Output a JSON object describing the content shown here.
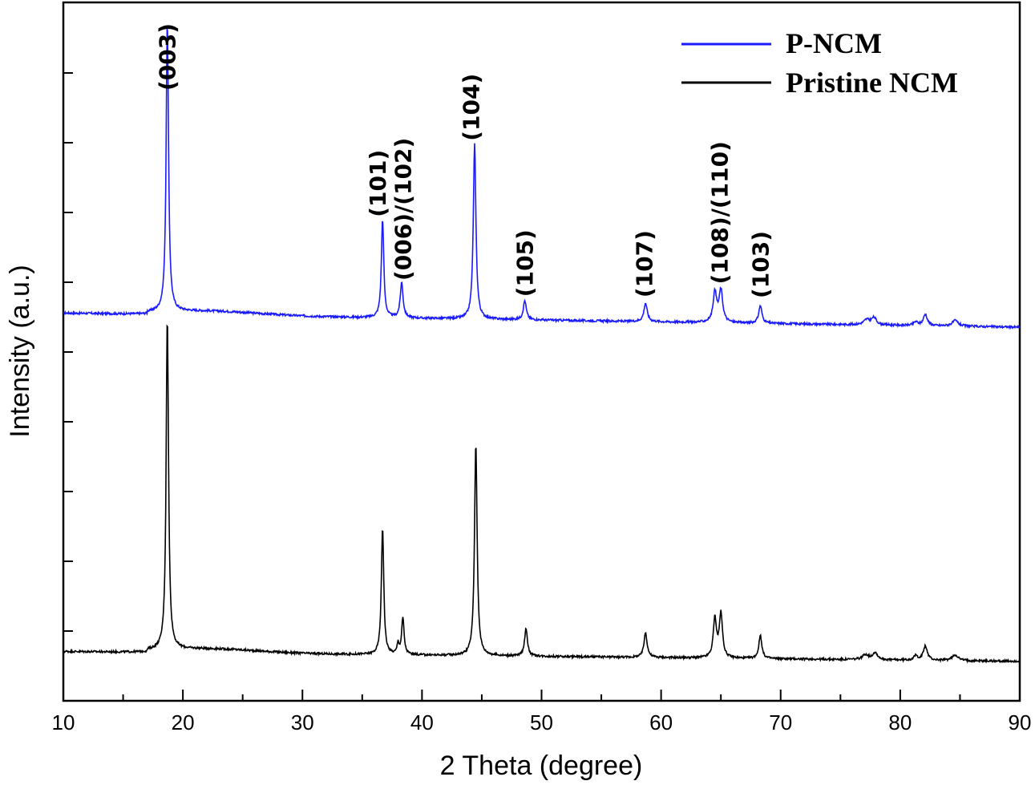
{
  "chart_data": {
    "type": "line",
    "xlabel": "2 Theta (degree)",
    "ylabel": "Intensity (a.u.)",
    "xlim": [
      10,
      90
    ],
    "x_ticks": [
      10,
      20,
      30,
      40,
      50,
      60,
      70,
      80,
      90
    ],
    "y_tick_labels_shown": false,
    "grid": false,
    "legend_position": "top-right",
    "series": [
      {
        "name": "P-NCM",
        "color": "#1a1aff",
        "baseline_start": 0.2,
        "baseline_end": 0.0,
        "peaks": [
          {
            "x": 18.7,
            "h": 4.1,
            "w": 0.12
          },
          {
            "x": 36.7,
            "h": 1.4,
            "w": 0.12
          },
          {
            "x": 38.3,
            "h": 0.5,
            "w": 0.14
          },
          {
            "x": 44.4,
            "h": 2.48,
            "w": 0.13
          },
          {
            "x": 48.6,
            "h": 0.27,
            "w": 0.15
          },
          {
            "x": 58.7,
            "h": 0.26,
            "w": 0.17
          },
          {
            "x": 64.5,
            "h": 0.42,
            "w": 0.18
          },
          {
            "x": 65.0,
            "h": 0.45,
            "w": 0.18
          },
          {
            "x": 68.3,
            "h": 0.25,
            "w": 0.16
          },
          {
            "x": 77.2,
            "h": 0.07,
            "w": 0.3
          },
          {
            "x": 77.8,
            "h": 0.1,
            "w": 0.25
          },
          {
            "x": 81.3,
            "h": 0.05,
            "w": 0.2
          },
          {
            "x": 82.1,
            "h": 0.16,
            "w": 0.2
          },
          {
            "x": 84.6,
            "h": 0.08,
            "w": 0.3
          }
        ]
      },
      {
        "name": "Pristine NCM",
        "color": "#000000",
        "baseline_start": 0.12,
        "baseline_end": -0.02,
        "peaks": [
          {
            "x": 18.7,
            "h": 4.7,
            "w": 0.12
          },
          {
            "x": 36.7,
            "h": 1.8,
            "w": 0.12
          },
          {
            "x": 38.0,
            "h": 0.15,
            "w": 0.1
          },
          {
            "x": 38.4,
            "h": 0.52,
            "w": 0.12
          },
          {
            "x": 44.5,
            "h": 3.0,
            "w": 0.13
          },
          {
            "x": 48.7,
            "h": 0.4,
            "w": 0.14
          },
          {
            "x": 58.7,
            "h": 0.35,
            "w": 0.16
          },
          {
            "x": 64.5,
            "h": 0.55,
            "w": 0.16
          },
          {
            "x": 65.0,
            "h": 0.62,
            "w": 0.16
          },
          {
            "x": 68.3,
            "h": 0.33,
            "w": 0.15
          },
          {
            "x": 77.1,
            "h": 0.07,
            "w": 0.3
          },
          {
            "x": 77.9,
            "h": 0.1,
            "w": 0.25
          },
          {
            "x": 81.3,
            "h": 0.06,
            "w": 0.2
          },
          {
            "x": 82.1,
            "h": 0.2,
            "w": 0.2
          },
          {
            "x": 84.6,
            "h": 0.08,
            "w": 0.3
          }
        ]
      }
    ],
    "annotations": [
      {
        "text": "(003)",
        "x": 18.7
      },
      {
        "text": "(101)",
        "x": 36.3
      },
      {
        "text": "(006)/(102)",
        "x": 38.4
      },
      {
        "text": "(104)",
        "x": 44.1
      },
      {
        "text": "(105)",
        "x": 48.6
      },
      {
        "text": "(107)",
        "x": 58.6
      },
      {
        "text": "(108)/(110)",
        "x": 64.9
      },
      {
        "text": "(103)",
        "x": 68.3
      }
    ],
    "legend": [
      "P-NCM",
      "Pristine NCM"
    ]
  }
}
